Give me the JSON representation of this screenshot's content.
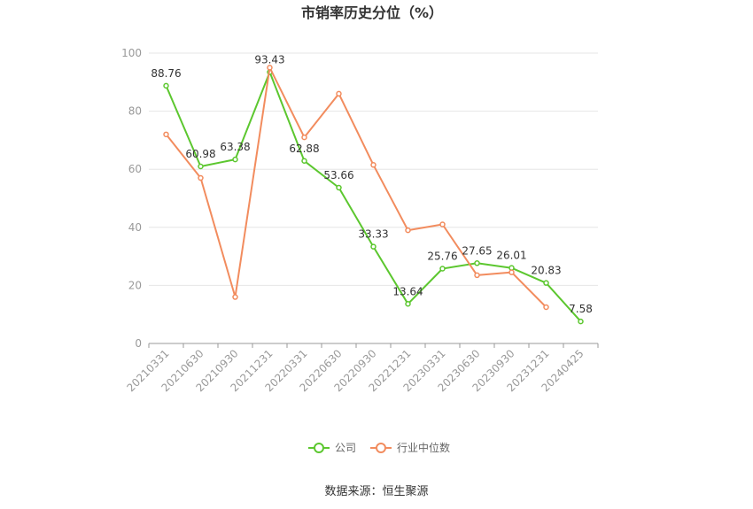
{
  "chart_data": {
    "type": "line",
    "title": "市销率历史分位（%）",
    "xlabel": "",
    "ylabel": "",
    "ylim": [
      0,
      100
    ],
    "yticks": [
      0,
      20,
      40,
      60,
      80,
      100
    ],
    "grid": true,
    "legend_position": "bottom-center",
    "categories": [
      "20210331",
      "20210630",
      "20210930",
      "20211231",
      "20220331",
      "20220630",
      "20220930",
      "20221231",
      "20230331",
      "20230630",
      "20230930",
      "20231231",
      "20240425"
    ],
    "series": [
      {
        "name": "公司",
        "color": "#5cc72f",
        "values": [
          88.76,
          60.98,
          63.38,
          93.43,
          62.88,
          53.66,
          33.33,
          13.64,
          25.76,
          27.65,
          26.01,
          20.83,
          7.58
        ],
        "labels": [
          "88.76",
          "60.98",
          "63.38",
          "93.43",
          "62.88",
          "53.66",
          "33.33",
          "13.64",
          "25.76",
          "27.65",
          "26.01",
          "20.83",
          "7.58"
        ]
      },
      {
        "name": "行业中位数",
        "color": "#f28c5e",
        "values": [
          72,
          57,
          16,
          95,
          71,
          86,
          61.5,
          39,
          41,
          23.5,
          24.5,
          12.5,
          null
        ]
      }
    ]
  },
  "source_text": "数据来源：恒生聚源"
}
